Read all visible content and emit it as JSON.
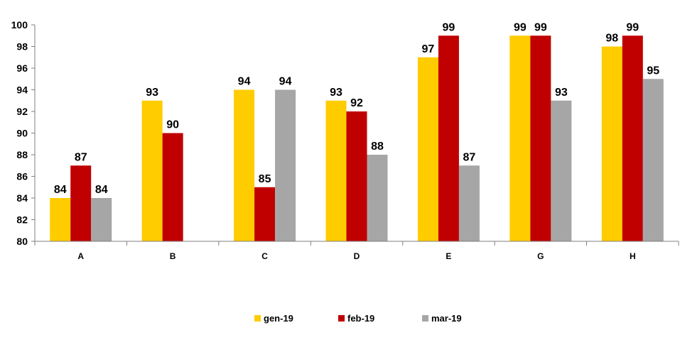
{
  "chart_data": {
    "type": "bar",
    "categories": [
      "A",
      "B",
      "C",
      "D",
      "E",
      "G",
      "H"
    ],
    "series": [
      {
        "name": "gen-19",
        "color": "#FFCC00",
        "values": [
          84,
          93,
          94,
          93,
          97,
          99,
          98
        ]
      },
      {
        "name": "feb-19",
        "color": "#C00000",
        "values": [
          87,
          90,
          85,
          92,
          99,
          99,
          99
        ]
      },
      {
        "name": "mar-19",
        "color": "#A6A6A6",
        "values": [
          84,
          null,
          94,
          88,
          87,
          93,
          95
        ]
      }
    ],
    "ylim": [
      80,
      100
    ],
    "yticks": [
      80,
      82,
      84,
      86,
      88,
      90,
      92,
      94,
      96,
      98,
      100
    ],
    "grid": false,
    "legend_position": "bottom",
    "data_labels": true
  }
}
